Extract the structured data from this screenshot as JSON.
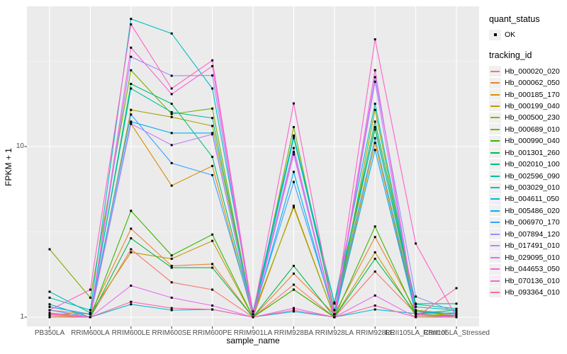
{
  "chart_data": {
    "type": "line",
    "title": "",
    "xlabel": "sample_name",
    "ylabel": "FPKM + 1",
    "y_scale": "log10",
    "y_ticks": [
      1,
      10
    ],
    "y_minor_ticks": [
      3.1623,
      31.623
    ],
    "ylim": [
      1,
      66
    ],
    "grid": "on",
    "legend_position": "right",
    "panel_color": "#EBEBEB",
    "grid_color": "#FFFFFF",
    "point_marker": {
      "shape": "square",
      "color": "#000000",
      "size": 3
    },
    "categories": [
      "PB350LA",
      "RRIM600LA",
      "RRIM600LE",
      "RRIM600SE",
      "RRIM600PE",
      "RRIM901LA",
      "RRIM928BA",
      "RRIM928LA",
      "RRIM928LE",
      "RRII105LA_Control",
      "RRII105LA_Stressed"
    ],
    "series": [
      {
        "name": "Hb_000020_020",
        "color": "#F8766D",
        "values": [
          1.06,
          1.0,
          2.5,
          1.6,
          1.45,
          1.0,
          1.55,
          1.0,
          1.85,
          1.05,
          1.0
        ]
      },
      {
        "name": "Hb_000062_050",
        "color": "#EA8331",
        "values": [
          1.1,
          1.04,
          3.3,
          2.0,
          2.05,
          1.0,
          1.8,
          1.04,
          2.95,
          1.08,
          1.02
        ]
      },
      {
        "name": "Hb_000185_170",
        "color": "#D89000",
        "values": [
          1.02,
          1.0,
          13.6,
          5.9,
          7.7,
          1.0,
          4.5,
          1.0,
          10.5,
          1.05,
          1.0
        ]
      },
      {
        "name": "Hb_000199_040",
        "color": "#C09B00",
        "values": [
          1.04,
          1.05,
          2.4,
          2.2,
          2.8,
          1.0,
          1.45,
          1.0,
          2.4,
          1.02,
          1.0
        ]
      },
      {
        "name": "Hb_000500_230",
        "color": "#A3A500",
        "values": [
          1.05,
          1.0,
          16.4,
          14.9,
          13.2,
          1.04,
          4.4,
          1.0,
          16.4,
          1.1,
          1.0
        ]
      },
      {
        "name": "Hb_000689_010",
        "color": "#7CAE00",
        "values": [
          2.5,
          1.3,
          28.0,
          15.5,
          16.7,
          1.0,
          13.0,
          1.04,
          13.0,
          1.1,
          1.04
        ]
      },
      {
        "name": "Hb_000990_040",
        "color": "#39B600",
        "values": [
          1.1,
          1.0,
          4.2,
          2.3,
          3.05,
          1.0,
          1.45,
          1.0,
          3.4,
          1.04,
          1.02
        ]
      },
      {
        "name": "Hb_001301_260",
        "color": "#00BB4E",
        "values": [
          1.05,
          1.0,
          2.9,
          1.95,
          1.95,
          1.0,
          2.0,
          1.0,
          2.2,
          1.05,
          1.1
        ]
      },
      {
        "name": "Hb_002010_100",
        "color": "#00BF7D",
        "values": [
          1.15,
          1.04,
          23.3,
          17.8,
          8.7,
          1.04,
          11.5,
          1.1,
          14.0,
          1.2,
          1.2
        ]
      },
      {
        "name": "Hb_002596_090",
        "color": "#00C1A3",
        "values": [
          1.41,
          1.06,
          21.9,
          15.9,
          14.7,
          1.0,
          11.2,
          1.2,
          12.6,
          1.19,
          1.12
        ]
      },
      {
        "name": "Hb_003029_010",
        "color": "#00BFC4",
        "values": [
          1.3,
          1.1,
          56.0,
          46.0,
          21.9,
          1.08,
          11.6,
          1.22,
          17.8,
          1.15,
          1.1
        ]
      },
      {
        "name": "Hb_004611_050",
        "color": "#00BAE0",
        "values": [
          1.19,
          1.0,
          1.19,
          1.1,
          1.11,
          1.0,
          1.08,
          1.0,
          1.11,
          1.05,
          1.06
        ]
      },
      {
        "name": "Hb_005486_020",
        "color": "#00B0F6",
        "values": [
          1.1,
          1.0,
          14.0,
          12.0,
          12.0,
          1.0,
          7.1,
          1.0,
          9.55,
          1.04,
          1.0
        ]
      },
      {
        "name": "Hb_006970_170",
        "color": "#35A2FF",
        "values": [
          1.15,
          1.04,
          15.4,
          8.0,
          6.8,
          1.04,
          6.2,
          1.04,
          11.2,
          1.08,
          1.04
        ]
      },
      {
        "name": "Hb_007894_120",
        "color": "#9590FF",
        "values": [
          1.1,
          1.0,
          33.6,
          26.0,
          26.1,
          1.0,
          9.8,
          1.0,
          25.5,
          1.32,
          1.07
        ]
      },
      {
        "name": "Hb_017491_010",
        "color": "#C77CFF",
        "values": [
          1.05,
          1.0,
          13.6,
          10.2,
          11.8,
          1.0,
          9.0,
          1.0,
          24.0,
          1.04,
          1.0
        ]
      },
      {
        "name": "Hb_029095_010",
        "color": "#E76BF3",
        "values": [
          1.0,
          1.0,
          1.53,
          1.3,
          1.17,
          1.0,
          1.13,
          1.0,
          1.34,
          1.0,
          1.0
        ]
      },
      {
        "name": "Hb_044653_050",
        "color": "#FA62DB",
        "values": [
          1.05,
          1.0,
          38.0,
          20.3,
          29.6,
          1.0,
          9.3,
          1.0,
          28.0,
          1.04,
          1.0
        ]
      },
      {
        "name": "Hb_070136_010",
        "color": "#FF61CC",
        "values": [
          1.1,
          1.45,
          52.0,
          21.9,
          32.0,
          1.04,
          17.9,
          1.04,
          42.5,
          2.7,
          1.0
        ]
      },
      {
        "name": "Hb_093364_010",
        "color": "#FF67A4",
        "values": [
          1.04,
          1.0,
          1.23,
          1.13,
          1.11,
          1.0,
          1.1,
          1.0,
          1.17,
          1.0,
          1.48
        ]
      }
    ]
  },
  "legend": {
    "quant_status": {
      "title": "quant_status",
      "items": [
        {
          "label": "OK",
          "marker": "black-square-point"
        }
      ]
    },
    "tracking_id": {
      "title": "tracking_id"
    }
  }
}
